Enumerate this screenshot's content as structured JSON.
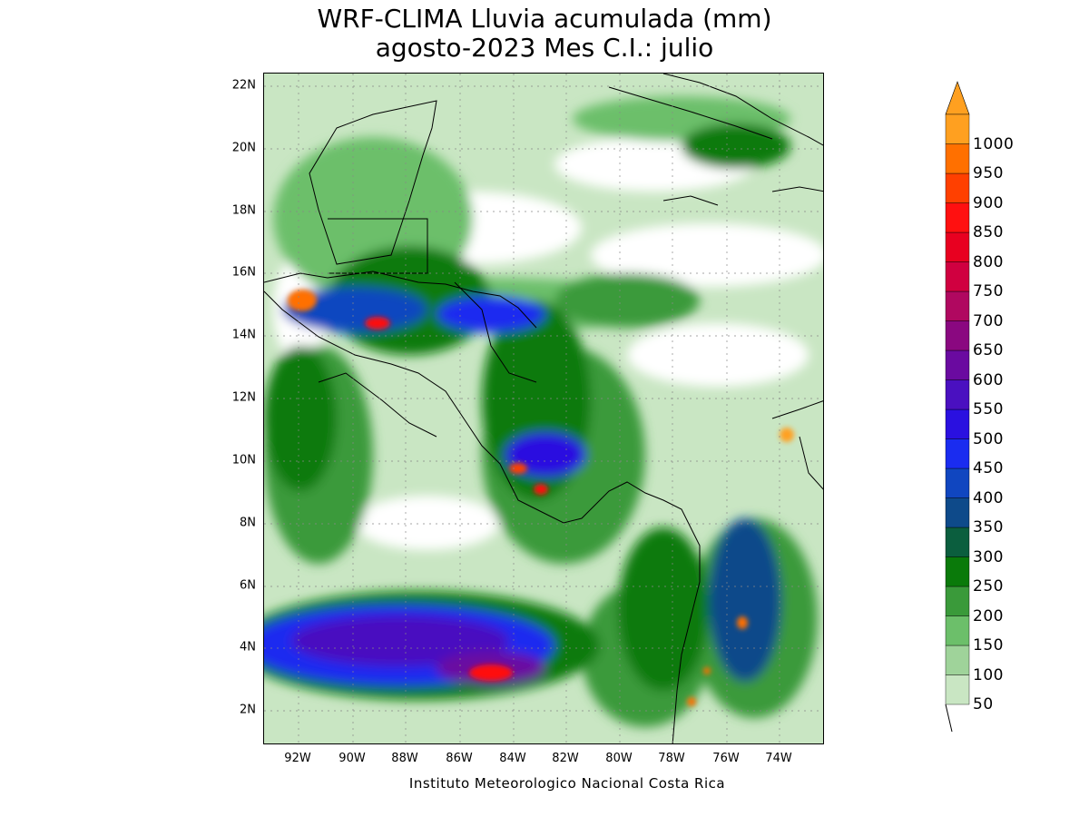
{
  "title": {
    "line1": "WRF-CLIMA Lluvia acumulada (mm)",
    "line2": "agosto-2023 Mes C.I.: julio"
  },
  "footer": "Instituto Meteorologico Nacional Costa Rica",
  "map": {
    "lat_labels": [
      "22N",
      "20N",
      "18N",
      "16N",
      "14N",
      "12N",
      "10N",
      "8N",
      "6N",
      "4N",
      "2N"
    ],
    "lon_labels": [
      "92W",
      "90W",
      "88W",
      "86W",
      "84W",
      "82W",
      "80W",
      "78W",
      "76W",
      "74W"
    ]
  },
  "colorbar": {
    "levels": [
      "50",
      "100",
      "150",
      "200",
      "250",
      "300",
      "350",
      "400",
      "450",
      "500",
      "550",
      "600",
      "650",
      "700",
      "750",
      "800",
      "850",
      "900",
      "950",
      "1000"
    ],
    "colors": [
      "#c9e6c3",
      "#9fd39a",
      "#6cbf6a",
      "#3a9a3a",
      "#0a7a0a",
      "#0b5e3e",
      "#0e4a8a",
      "#1046c0",
      "#1a2cf0",
      "#2a10e0",
      "#4a10c0",
      "#6a0aa0",
      "#8a0880",
      "#b00860",
      "#d00040",
      "#e80020",
      "#ff1010",
      "#ff4000",
      "#ff7000",
      "#ffa020"
    ],
    "arrow_color": "#ffa020"
  }
}
